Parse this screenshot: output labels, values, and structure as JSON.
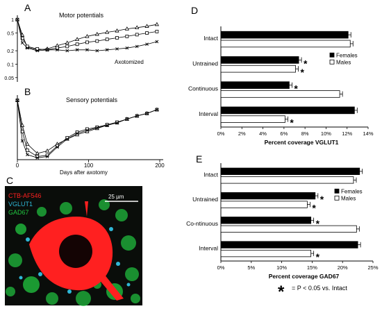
{
  "chart_data": [
    {
      "panel": "A",
      "type": "line",
      "title": "Motor potentials",
      "annotation": "Axotomized",
      "ytick_labels": [
        "1",
        "0.5",
        "0.2",
        "0.1",
        "0.05"
      ],
      "x": [
        0,
        7,
        14,
        28,
        42,
        56,
        70,
        84,
        98,
        112,
        126,
        140,
        154,
        168,
        182,
        196
      ],
      "series": [
        {
          "marker": "triangle",
          "values": [
            1.0,
            0.45,
            0.24,
            0.21,
            0.22,
            0.26,
            0.3,
            0.36,
            0.42,
            0.47,
            0.52,
            0.56,
            0.62,
            0.66,
            0.71,
            0.78
          ]
        },
        {
          "marker": "square",
          "values": [
            1.0,
            0.38,
            0.25,
            0.22,
            0.21,
            0.23,
            0.25,
            0.28,
            0.31,
            0.33,
            0.36,
            0.39,
            0.42,
            0.46,
            0.5,
            0.54
          ]
        },
        {
          "marker": "cross",
          "values": [
            1.0,
            0.3,
            0.23,
            0.2,
            0.21,
            0.21,
            0.2,
            0.21,
            0.21,
            0.2,
            0.21,
            0.22,
            0.23,
            0.25,
            0.28,
            0.32
          ]
        }
      ]
    },
    {
      "panel": "B",
      "type": "line",
      "title": "Sensory potentials",
      "xlabel": "Days after axotomy",
      "xtick_labels": [
        "0",
        "100",
        "200"
      ],
      "xlim": [
        0,
        200
      ],
      "x": [
        0,
        7,
        14,
        28,
        42,
        56,
        70,
        84,
        98,
        112,
        126,
        140,
        154,
        168,
        182,
        196
      ],
      "series": [
        {
          "marker": "triangle",
          "values": [
            0.95,
            0.55,
            0.25,
            0.1,
            0.14,
            0.25,
            0.33,
            0.4,
            0.45,
            0.5,
            0.55,
            0.59,
            0.65,
            0.7,
            0.74,
            0.8
          ]
        },
        {
          "marker": "square",
          "values": [
            0.95,
            0.45,
            0.15,
            0.05,
            0.07,
            0.22,
            0.35,
            0.44,
            0.49,
            0.52,
            0.56,
            0.6,
            0.65,
            0.7,
            0.74,
            0.8
          ]
        },
        {
          "marker": "cross",
          "values": [
            0.95,
            0.3,
            0.08,
            0.03,
            0.05,
            0.2,
            0.33,
            0.42,
            0.47,
            0.51,
            0.55,
            0.59,
            0.65,
            0.7,
            0.74,
            0.8
          ]
        }
      ]
    },
    {
      "panel": "D",
      "type": "bar",
      "orientation": "horizontal",
      "categories": [
        "Intact",
        "Untrained",
        "Continuous",
        "Interval"
      ],
      "series": [
        {
          "name": "Females",
          "color": "#000000",
          "values": [
            12.1,
            7.4,
            6.5,
            12.7
          ]
        },
        {
          "name": "Males",
          "color": "#ffffff",
          "values": [
            12.3,
            7.1,
            11.3,
            6.1
          ]
        }
      ],
      "xlabel": "Percent coverage VGLUT1",
      "xlim": [
        0,
        14
      ],
      "xtick_labels": [
        "0%",
        "2%",
        "4%",
        "6%",
        "8%",
        "10%",
        "12%",
        "14%"
      ]
    },
    {
      "panel": "E",
      "type": "bar",
      "orientation": "horizontal",
      "categories": [
        "Intact",
        "Untrained",
        "Co-ntinuous",
        "Interval"
      ],
      "series": [
        {
          "name": "Females",
          "color": "#000000",
          "values": [
            22.8,
            15.5,
            14.8,
            22.5
          ]
        },
        {
          "name": "Males",
          "color": "#ffffff",
          "values": [
            21.8,
            14.2,
            22.3,
            14.8
          ]
        }
      ],
      "xlabel": "Percent coverage GAD67",
      "xlim": [
        0,
        25
      ],
      "xtick_labels": [
        "0%",
        "5%",
        "10%",
        "15%",
        "20%",
        "25%"
      ]
    }
  ],
  "panel_labels": {
    "a": "A",
    "b": "B",
    "c": "C",
    "d": "D",
    "e": "E"
  },
  "stars": {
    "d": [
      "*",
      "*",
      "*",
      "*"
    ],
    "e": [
      "*",
      "*",
      "*",
      "*"
    ]
  },
  "significance_note": {
    "star": "*",
    "text": "= P < 0.05 vs. Intact"
  },
  "micrograph": {
    "stain1": "CTB-AF546",
    "stain2": "VGLUT1",
    "stain3": "GAD67",
    "scale_bar": "25 µm",
    "colors": {
      "stain1": "#ff2020",
      "stain2": "#2fb7d6",
      "stain3": "#21c840"
    }
  }
}
